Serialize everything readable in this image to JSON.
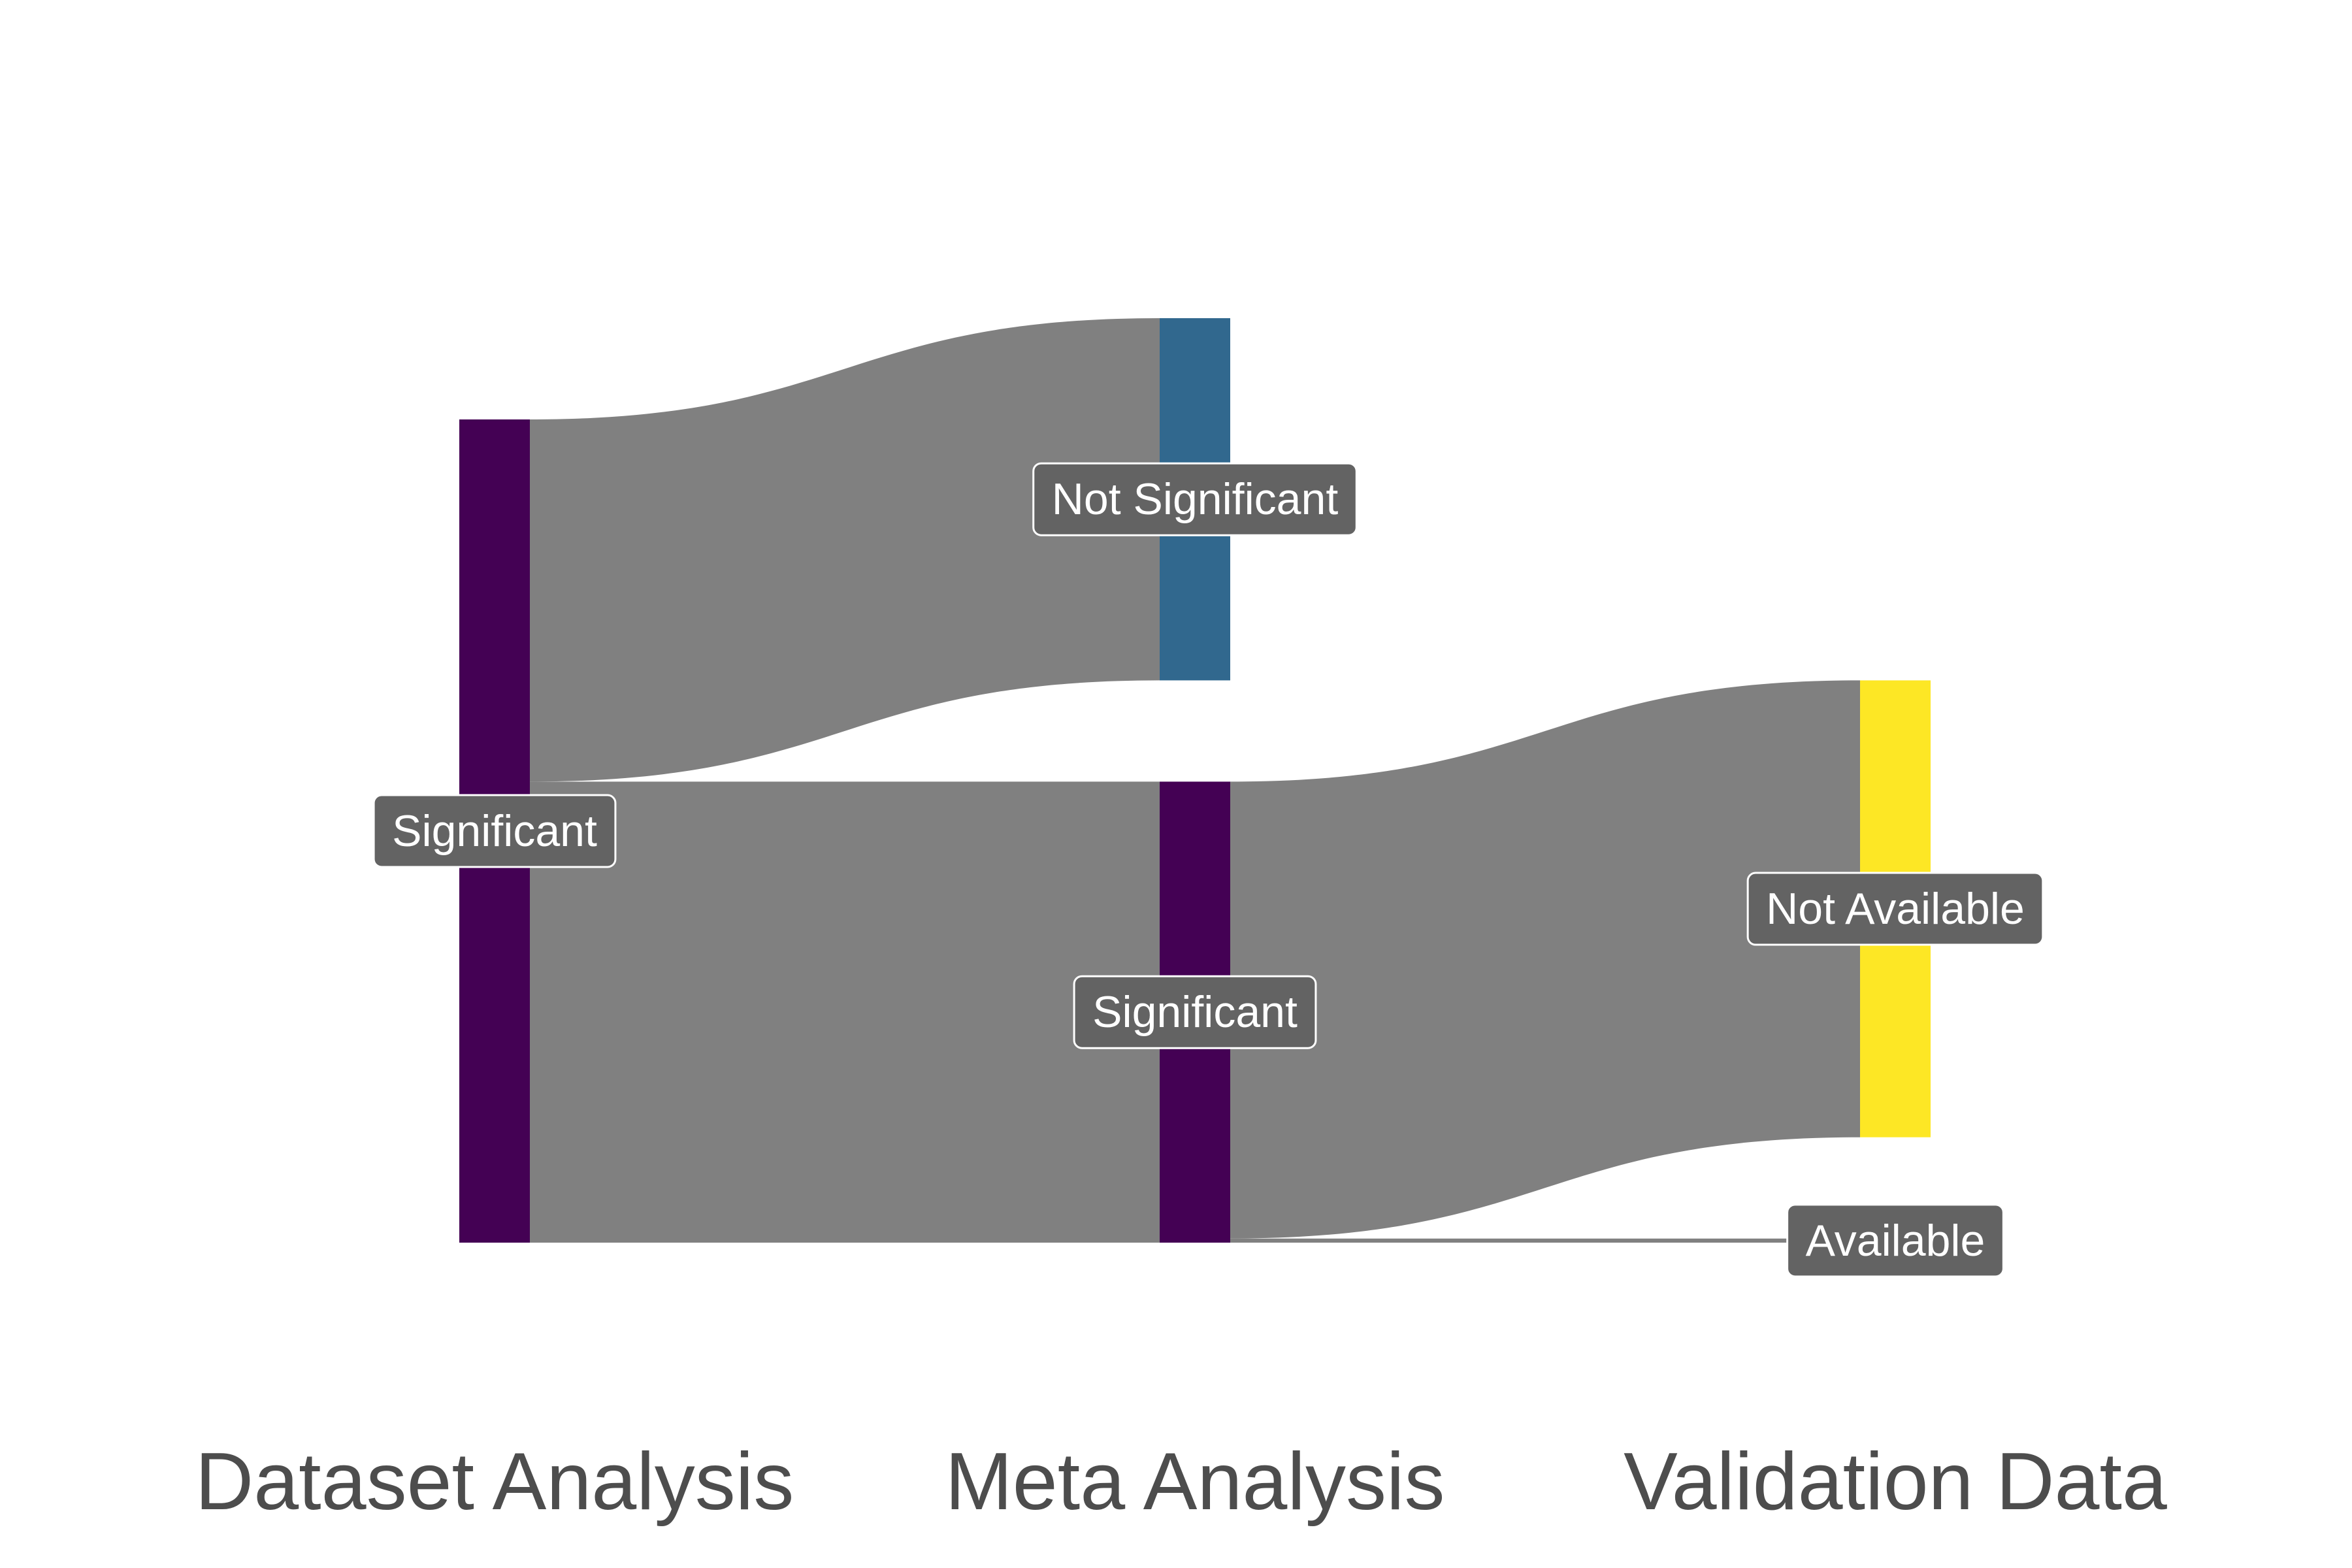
{
  "chart_data": {
    "type": "sankey",
    "stages": [
      "Dataset Analysis",
      "Meta Analysis",
      "Validation Data"
    ],
    "nodes": [
      {
        "id": "da_sig",
        "stage": 0,
        "label": "Significant",
        "value": 1,
        "color": "#440154"
      },
      {
        "id": "ma_notsig",
        "stage": 1,
        "label": "Not Significant",
        "value": 0.44,
        "color": "#31688e"
      },
      {
        "id": "ma_sig",
        "stage": 1,
        "label": "Significant",
        "value": 0.56,
        "color": "#440154"
      },
      {
        "id": "vd_notavail",
        "stage": 2,
        "label": "Not Available",
        "value": 0.555,
        "color": "#fde725"
      },
      {
        "id": "vd_avail",
        "stage": 2,
        "label": "Available",
        "value": 0.005,
        "color": "#fde725"
      }
    ],
    "flows": [
      {
        "from": "da_sig",
        "to": "ma_notsig",
        "value": 0.44
      },
      {
        "from": "da_sig",
        "to": "ma_sig",
        "value": 0.56
      },
      {
        "from": "ma_sig",
        "to": "vd_notavail",
        "value": 0.555
      },
      {
        "from": "ma_sig",
        "to": "vd_avail",
        "value": 0.005
      }
    ],
    "flow_color": "#808080",
    "label_bg": "#636363",
    "label_fg": "#ffffff",
    "legend": "none"
  }
}
